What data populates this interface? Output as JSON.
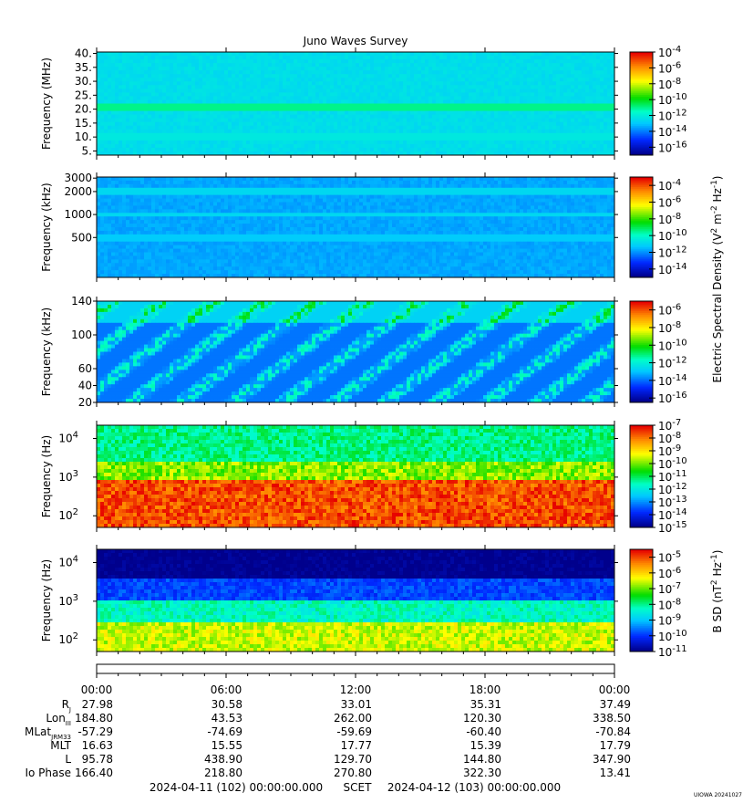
{
  "chart_data": {
    "type": "heatmap",
    "title": "Juno Waves Survey",
    "panels": [
      {
        "ylabel": "Frequency (MHz)",
        "yticks": [
          "40.",
          "35.",
          "30.",
          "25.",
          "20.",
          "15.",
          "10.",
          "5."
        ],
        "ytick_values": [
          40,
          35,
          30,
          25,
          20,
          15,
          10,
          5
        ],
        "ylim": [
          3.5,
          40.5
        ],
        "yscale": "linear",
        "colorbar_ticks": [
          -4,
          -6,
          -8,
          -10,
          -12,
          -14,
          -16
        ],
        "colorbar_range": [
          -17,
          -4
        ],
        "colorbar_base": "10",
        "background_level": -12.5,
        "features": [
          {
            "kind": "band",
            "y": 21,
            "level": -11.0
          },
          {
            "kind": "band",
            "y": 10,
            "level": -12.2
          }
        ]
      },
      {
        "ylabel": "Frequency (kHz)",
        "yticks": [
          "3000",
          "2000",
          "1000",
          "500"
        ],
        "ytick_values": [
          3000,
          2000,
          1000,
          500
        ],
        "ylim": [
          150,
          3100
        ],
        "yscale": "log",
        "colorbar_ticks": [
          -4,
          -6,
          -8,
          -10,
          -12,
          -14
        ],
        "colorbar_range": [
          -15,
          -3
        ],
        "colorbar_base": "10",
        "background_level": -11.8,
        "features": [
          {
            "kind": "band",
            "y": 2000,
            "level": -11.0
          },
          {
            "kind": "band",
            "y": 1000,
            "level": -11.0
          },
          {
            "kind": "band",
            "y": 500,
            "level": -11.3
          }
        ]
      },
      {
        "ylabel": "Frequency (kHz)",
        "yticks": [
          "140",
          "100",
          "60",
          "40",
          "20"
        ],
        "ytick_values": [
          140,
          100,
          60,
          40,
          20
        ],
        "ylim": [
          20,
          140
        ],
        "yscale": "linear",
        "colorbar_ticks": [
          -6,
          -8,
          -10,
          -12,
          -14,
          -16
        ],
        "colorbar_range": [
          -16.5,
          -5
        ],
        "colorbar_base": "10",
        "background_level": -14.0,
        "features": []
      },
      {
        "ylabel": "Frequency (Hz)",
        "yticks": [
          "10",
          "10",
          "10"
        ],
        "ytick_exponents": [
          "4",
          "3",
          "2"
        ],
        "ytick_values": [
          10000,
          1000,
          100
        ],
        "ylim": [
          50,
          22000
        ],
        "yscale": "log",
        "colorbar_ticks": [
          -7,
          -8,
          -9,
          -10,
          -11,
          -12,
          -13,
          -14,
          -15
        ],
        "colorbar_range": [
          -15,
          -7
        ],
        "colorbar_base": "10",
        "background_level": -12.0,
        "features": [
          {
            "kind": "cutoff",
            "y": 900,
            "level_below": -7.5
          }
        ]
      },
      {
        "ylabel": "Frequency (Hz)",
        "yticks": [
          "10",
          "10",
          "10"
        ],
        "ytick_exponents": [
          "4",
          "3",
          "2"
        ],
        "ytick_values": [
          10000,
          1000,
          100
        ],
        "ylim": [
          50,
          22000
        ],
        "yscale": "log",
        "colorbar_ticks": [
          -5,
          -6,
          -7,
          -8,
          -9,
          -10,
          -11
        ],
        "colorbar_range": [
          -11,
          -4.5
        ],
        "colorbar_base": "10",
        "background_level": -10.5,
        "features": [
          {
            "kind": "cutoff",
            "y": 500,
            "level_below": -6.5
          }
        ]
      }
    ],
    "colorbar_labels": {
      "electric": {
        "prefix": "Electric Spectral Density (V",
        "sup1": "2",
        "mid": " m",
        "sup2": "-2",
        "mid2": " Hz",
        "sup3": "-1",
        "suffix": ")"
      },
      "magnetic": {
        "prefix": "B SD (nT",
        "sup1": "2",
        "mid": " Hz",
        "sup2": "-1",
        "suffix": ")"
      }
    },
    "x_ticks": [
      "00:00",
      "06:00",
      "12:00",
      "18:00",
      "00:00"
    ],
    "x_tick_hours": [
      0,
      6,
      12,
      18,
      24
    ],
    "xlim": [
      0,
      24
    ],
    "ephemeris": {
      "labels": [
        {
          "main": "R",
          "sub": "J"
        },
        {
          "main": "Lon",
          "sub": "III"
        },
        {
          "main": "MLat",
          "sub": "JRM33"
        },
        {
          "main": "MLT",
          "sub": ""
        },
        {
          "main": "L",
          "sub": ""
        },
        {
          "main": "Io Phase",
          "sub": ""
        }
      ],
      "rows": [
        [
          "27.98",
          "30.58",
          "33.01",
          "35.31",
          "37.49"
        ],
        [
          "184.80",
          "43.53",
          "262.00",
          "120.30",
          "338.50"
        ],
        [
          "-57.29",
          "-74.69",
          "-59.69",
          "-60.40",
          "-70.84"
        ],
        [
          "16.63",
          "15.55",
          "17.77",
          "15.39",
          "17.79"
        ],
        [
          "95.78",
          "438.90",
          "129.70",
          "144.80",
          "347.90"
        ],
        [
          "166.40",
          "218.80",
          "270.80",
          "322.30",
          "13.41"
        ]
      ]
    },
    "time_range_start": "2024-04-11 (102) 00:00:00.000",
    "time_range_label": "SCET",
    "time_range_end": "2024-04-12 (103) 00:00:00.000",
    "footer_stamp": "UIOWA 20241027"
  }
}
